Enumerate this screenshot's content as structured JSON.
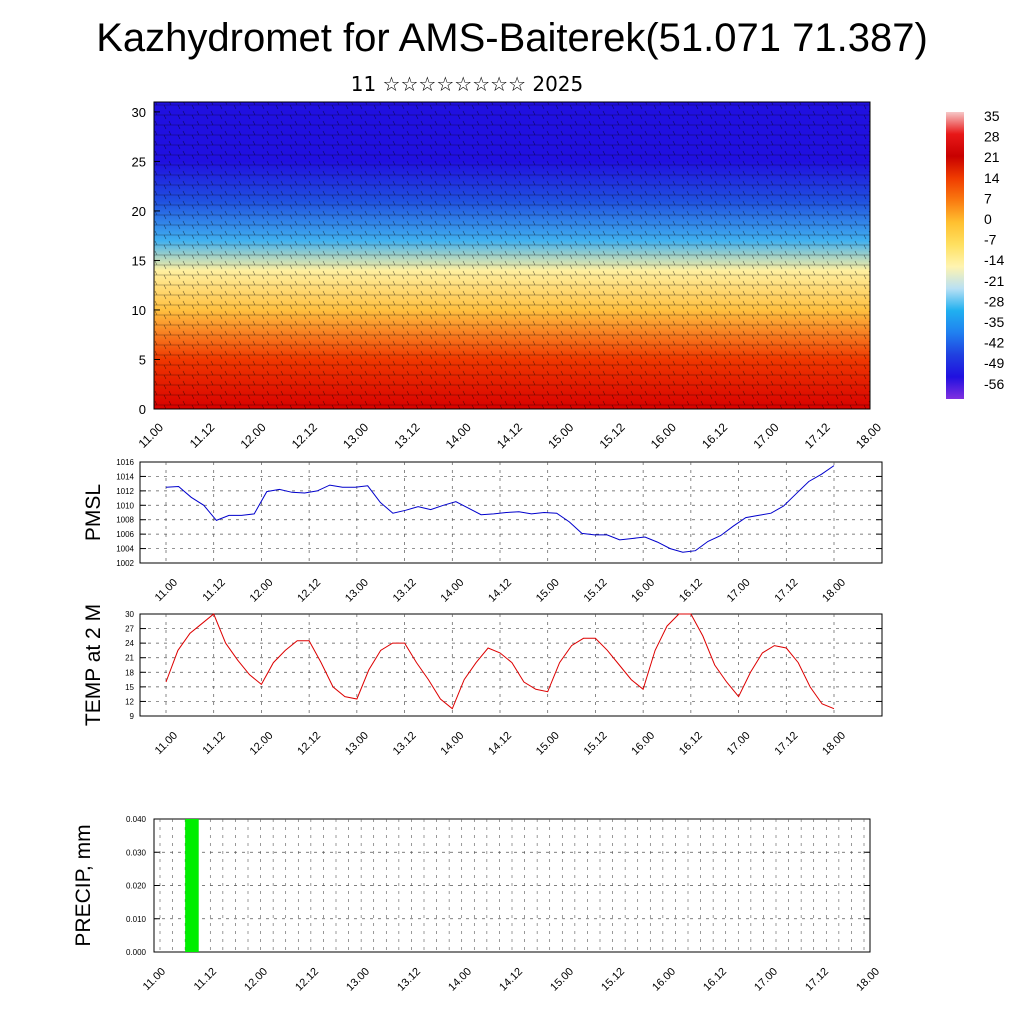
{
  "title": "Kazhydromet for AMS-Baiterek(51.071 71.387)",
  "subtitle": "11 ☆☆☆☆☆☆☆☆ 2025",
  "time_labels": [
    "11.00",
    "11.12",
    "12.00",
    "12.12",
    "13.00",
    "13.12",
    "14.00",
    "14.12",
    "15.00",
    "15.12",
    "16.00",
    "16.12",
    "17.00",
    "17.12",
    "18.00"
  ],
  "colorbar": {
    "labels": [
      "35",
      "28",
      "21",
      "14",
      "7",
      "0",
      "-7",
      "-14",
      "-21",
      "-28",
      "-35",
      "-42",
      "-49",
      "-56"
    ],
    "stops": [
      "#f6c8c8",
      "#e81818",
      "#c80000",
      "#f03c00",
      "#fa7a10",
      "#ffc030",
      "#ffe060",
      "#fff4b0",
      "#b8e0f4",
      "#20b0f0",
      "#2080f0",
      "#2040e0",
      "#2010e0",
      "#8030e0"
    ]
  },
  "chart_data": [
    {
      "type": "heatmap",
      "name": "cross-section",
      "y_range": [
        0,
        31
      ],
      "y_ticks": [
        0,
        5,
        10,
        15,
        20,
        25,
        30
      ],
      "value_range": [
        -56,
        35
      ],
      "description_layers": [
        {
          "y": 0,
          "value": 28
        },
        {
          "y": 5,
          "value": 21
        },
        {
          "y": 10,
          "value": 7
        },
        {
          "y": 14,
          "value": -7
        },
        {
          "y": 17,
          "value": -21
        },
        {
          "y": 21,
          "value": -42
        },
        {
          "y": 25,
          "value": -56
        },
        {
          "y": 31,
          "value": -56
        }
      ],
      "colors": {
        "warm": "#e81818",
        "cold": "#2010e0"
      }
    },
    {
      "type": "line",
      "ylabel": "PMSL",
      "ylim": [
        1002,
        1016
      ],
      "y_ticks": [
        1002,
        1004,
        1006,
        1008,
        1010,
        1012,
        1014,
        1016
      ],
      "color": "#0000cc",
      "values": [
        1012.5,
        1012.6,
        1011.1,
        1010.0,
        1007.9,
        1008.6,
        1008.6,
        1008.8,
        1011.9,
        1012.2,
        1011.8,
        1011.7,
        1012.0,
        1012.8,
        1012.5,
        1012.5,
        1012.7,
        1010.4,
        1008.9,
        1009.3,
        1009.8,
        1009.4,
        1010.0,
        1010.5,
        1009.6,
        1008.7,
        1008.8,
        1009.0,
        1009.1,
        1008.8,
        1009.0,
        1008.9,
        1007.7,
        1006.1,
        1005.9,
        1005.9,
        1005.2,
        1005.4,
        1005.6,
        1004.9,
        1004.0,
        1003.5,
        1003.7,
        1005.0,
        1005.8,
        1007.1,
        1008.3,
        1008.6,
        1008.9,
        1009.9,
        1011.6,
        1013.3,
        1014.3,
        1015.5
      ]
    },
    {
      "type": "line",
      "ylabel": "TEMP at 2 M",
      "ylim": [
        9,
        30
      ],
      "y_ticks": [
        9,
        12,
        15,
        18,
        21,
        24,
        27,
        30
      ],
      "color": "#dd0000",
      "values": [
        16.0,
        22.5,
        26.0,
        28.0,
        30.0,
        24.0,
        20.5,
        17.5,
        15.5,
        20.0,
        22.5,
        24.5,
        24.5,
        20.0,
        15.0,
        13.0,
        12.5,
        18.5,
        22.5,
        24.0,
        24.0,
        20.0,
        16.5,
        12.5,
        10.5,
        16.5,
        20.0,
        23.0,
        22.0,
        20.0,
        16.0,
        14.5,
        14.0,
        20.0,
        23.5,
        25.0,
        25.0,
        22.5,
        19.5,
        16.5,
        14.5,
        22.5,
        27.5,
        30.0,
        30.0,
        25.5,
        19.5,
        16.0,
        13.0,
        18.0,
        22.0,
        23.5,
        23.0,
        20.0,
        15.0,
        11.5,
        10.5
      ]
    },
    {
      "type": "bar",
      "ylabel": "PRECIP, mm",
      "ylim": [
        0,
        0.04
      ],
      "y_tick_labels": [
        "0.000",
        "0.010",
        "0.020",
        "0.030",
        "0.040"
      ],
      "color": "#00ee00",
      "bars": [
        {
          "x": "11.06",
          "value": 0.04
        }
      ]
    }
  ]
}
